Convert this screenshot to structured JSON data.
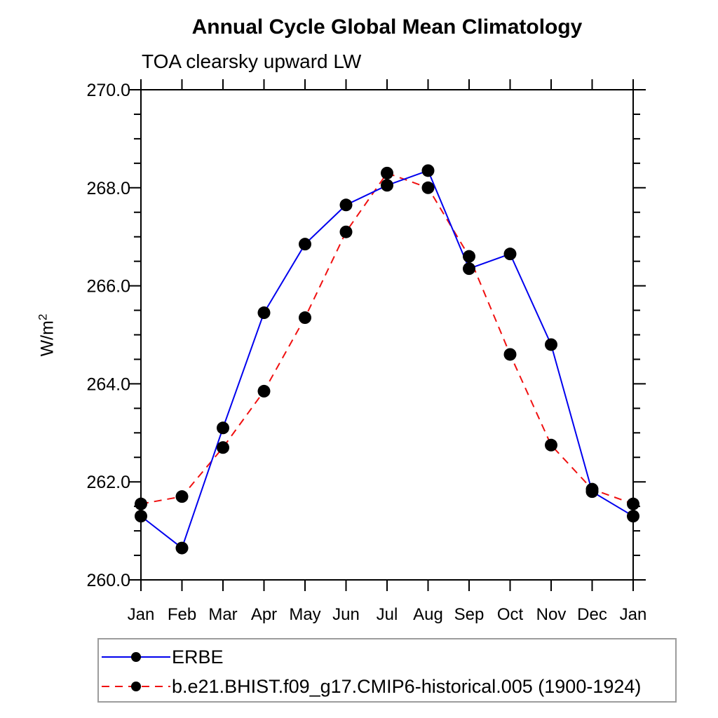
{
  "title": "Annual Cycle Global Mean Climatology",
  "subtitle": "TOA clearsky upward LW",
  "y_axis_title": {
    "text": "W/m",
    "sup": "2"
  },
  "chart_data": {
    "type": "line",
    "x_tick_labels": [
      "Jan",
      "Feb",
      "Mar",
      "Apr",
      "May",
      "Jun",
      "Jul",
      "Aug",
      "Sep",
      "Oct",
      "Nov",
      "Dec",
      "Jan"
    ],
    "y_tick_labels": [
      "260.0",
      "262.0",
      "264.0",
      "266.0",
      "268.0",
      "270.0"
    ],
    "y_major_ticks": [
      260,
      262,
      264,
      266,
      268,
      270
    ],
    "y_minor_step": 0.5,
    "ylim": [
      260,
      270
    ],
    "xlabel": "",
    "ylabel": "W/m2",
    "grid": false,
    "legend_position": "bottom-left-box",
    "marker_color": "#000000",
    "axis_color": "#000000",
    "series": [
      {
        "name": "ERBE",
        "color": "#0000ee",
        "line_style": "solid",
        "marker": "filled-circle",
        "values": [
          261.3,
          260.65,
          263.1,
          265.45,
          266.85,
          267.65,
          268.05,
          268.35,
          266.35,
          266.65,
          264.8,
          261.8,
          261.3
        ]
      },
      {
        "name": "b.e21.BHIST.f09_g17.CMIP6-historical.005 (1900-1924)",
        "color": "#f01010",
        "line_style": "dashed",
        "marker": "filled-circle",
        "values": [
          261.55,
          261.7,
          262.7,
          263.85,
          265.35,
          267.1,
          268.3,
          268.0,
          266.6,
          264.6,
          262.75,
          261.85,
          261.55
        ]
      }
    ]
  }
}
